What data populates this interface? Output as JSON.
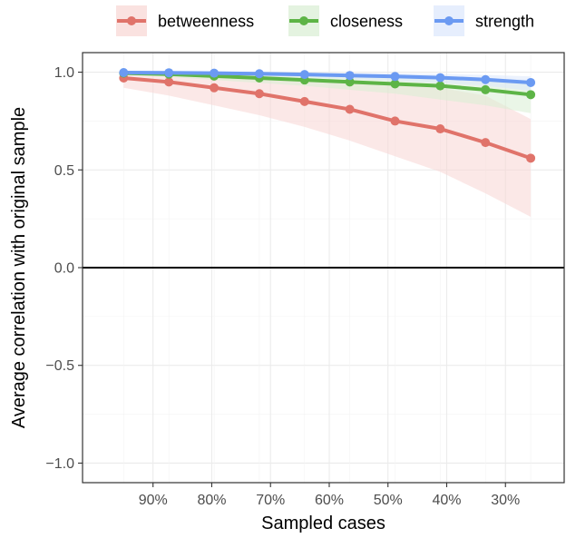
{
  "chart_data": {
    "type": "line",
    "xlabel": "Sampled cases",
    "ylabel": "Average correlation with original sample",
    "x_axis": {
      "direction": "reversed",
      "lim": [
        0.2,
        1.02
      ],
      "ticks": [
        0.9,
        0.8,
        0.7,
        0.6,
        0.5,
        0.4,
        0.3
      ],
      "tick_labels": [
        "90%",
        "80%",
        "70%",
        "60%",
        "50%",
        "40%",
        "30%"
      ]
    },
    "y_axis": {
      "lim": [
        -1.1,
        1.1
      ],
      "ticks": [
        1.0,
        0.5,
        0.0,
        -0.5,
        -1.0
      ],
      "tick_labels": [
        "1.0",
        "0.5",
        "0.0",
        "−0.5",
        "−1.0"
      ]
    },
    "grid": true,
    "legend_position": "top",
    "reference_line_y": 0,
    "x": [
      0.95,
      0.873,
      0.796,
      0.719,
      0.642,
      0.565,
      0.488,
      0.411,
      0.334,
      0.257
    ],
    "series": [
      {
        "name": "betweenness",
        "color": "#E0736A",
        "band_color": "#F8D6D3",
        "values": [
          0.97,
          0.95,
          0.92,
          0.89,
          0.85,
          0.81,
          0.75,
          0.71,
          0.64,
          0.56
        ],
        "lower": [
          0.92,
          0.88,
          0.83,
          0.78,
          0.72,
          0.65,
          0.57,
          0.49,
          0.38,
          0.26
        ],
        "upper": [
          0.99,
          0.99,
          0.99,
          0.98,
          0.97,
          0.96,
          0.94,
          0.92,
          0.88,
          0.76
        ]
      },
      {
        "name": "closeness",
        "color": "#5DB446",
        "band_color": "#D9EED3",
        "values": [
          0.995,
          0.99,
          0.98,
          0.97,
          0.96,
          0.95,
          0.94,
          0.93,
          0.91,
          0.885
        ],
        "lower": [
          0.985,
          0.975,
          0.96,
          0.945,
          0.93,
          0.91,
          0.89,
          0.86,
          0.83,
          0.79
        ],
        "upper": [
          1.0,
          1.0,
          0.995,
          0.99,
          0.985,
          0.98,
          0.975,
          0.97,
          0.96,
          0.95
        ]
      },
      {
        "name": "strength",
        "color": "#6B9AF2",
        "band_color": "#DCE7FC",
        "values": [
          0.998,
          0.997,
          0.995,
          0.992,
          0.988,
          0.983,
          0.978,
          0.972,
          0.962,
          0.947
        ],
        "lower": [
          0.993,
          0.99,
          0.985,
          0.98,
          0.974,
          0.966,
          0.956,
          0.945,
          0.93,
          0.905
        ],
        "upper": [
          1.0,
          1.0,
          1.0,
          1.0,
          0.998,
          0.996,
          0.994,
          0.991,
          0.986,
          0.978
        ]
      }
    ]
  }
}
